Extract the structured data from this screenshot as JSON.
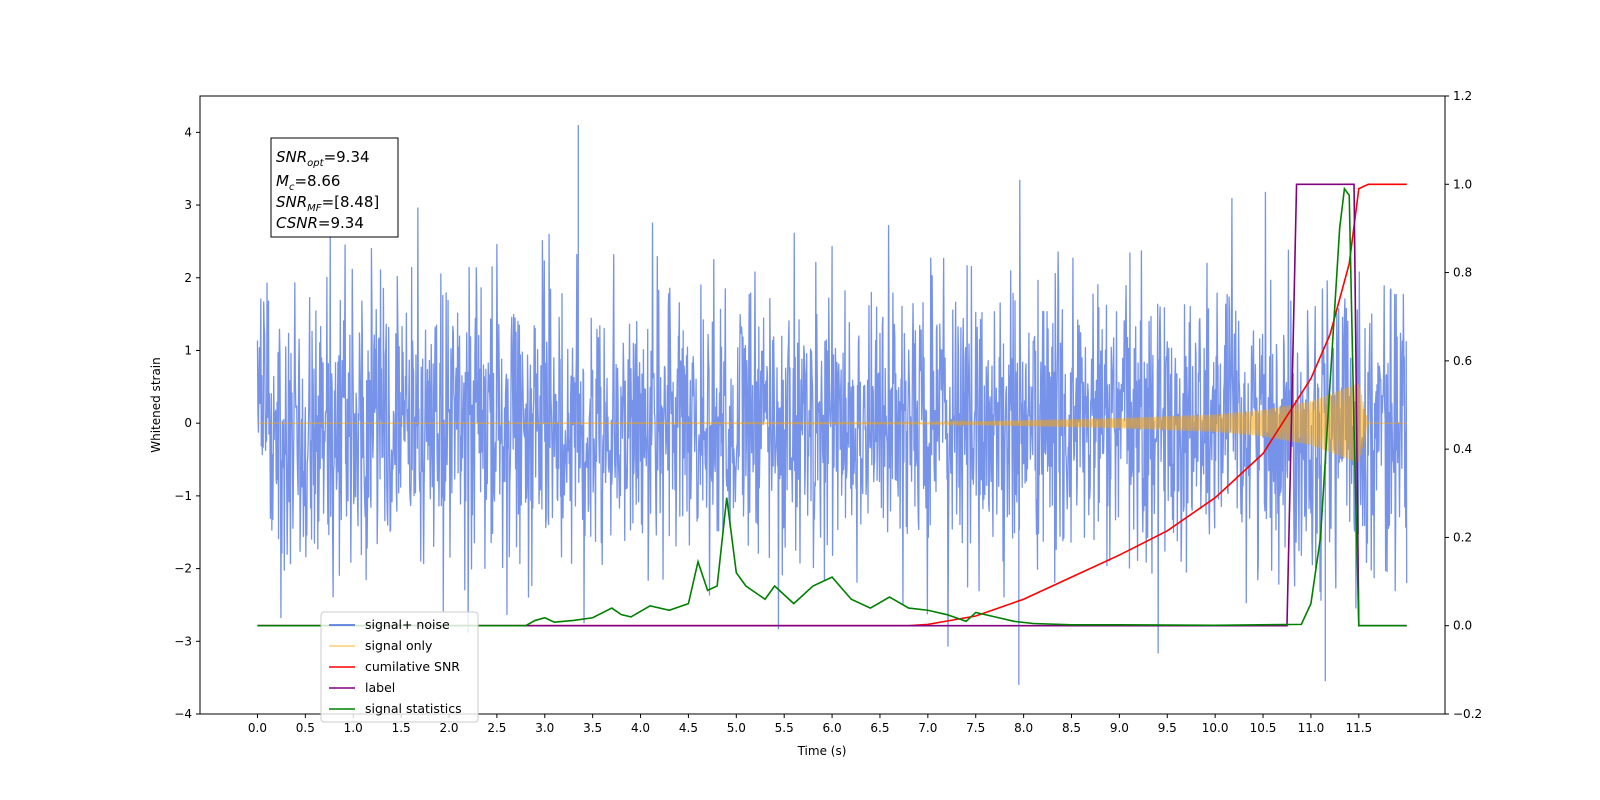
{
  "chart_data": {
    "type": "line",
    "xlabel": "Time (s)",
    "ylabel": "Whitened strain",
    "xlim": [
      -0.6,
      12.4
    ],
    "ylim": [
      -4,
      4.5
    ],
    "y2lim": [
      -0.2,
      1.2
    ],
    "x_ticks": [
      "0.0",
      "0.5",
      "1.0",
      "1.5",
      "2.0",
      "2.5",
      "3.0",
      "3.5",
      "4.0",
      "4.5",
      "5.0",
      "5.5",
      "6.0",
      "6.5",
      "7.0",
      "7.5",
      "8.0",
      "8.5",
      "9.0",
      "9.5",
      "10.0",
      "10.5",
      "11.0",
      "11.5"
    ],
    "y_ticks": [
      "4",
      "3",
      "2",
      "1",
      "0",
      "−1",
      "−2",
      "−3",
      "−4"
    ],
    "y2_ticks": [
      "1.2",
      "1.0",
      "0.8",
      "0.6",
      "0.4",
      "0.2",
      "0.0",
      "−0.2"
    ],
    "grid": false,
    "legend_position": "lower-left",
    "annotation": {
      "snr_opt": "=9.34",
      "mc": "=8.66",
      "snr_mf": "=[8.48]",
      "csnr": "=9.34"
    },
    "series": [
      {
        "name": "signal+ noise",
        "axis": "left",
        "color": "#4169e1",
        "x_range": [
          0.0,
          12.0
        ],
        "approx_range": [
          -3.6,
          4.1
        ],
        "peaks": [
          {
            "x": 3.35,
            "y": 4.1
          },
          {
            "x": 7.95,
            "y": -3.6
          },
          {
            "x": 11.15,
            "y": -3.55
          }
        ]
      },
      {
        "name": "signal only",
        "axis": "left",
        "color": "#ffa500",
        "x_range": [
          0.0,
          12.0
        ],
        "envelope": {
          "x": [
            0.0,
            7.0,
            8.0,
            9.0,
            10.0,
            10.5,
            11.0,
            11.3,
            11.5,
            11.6,
            12.0
          ],
          "amp": [
            0.0,
            0.01,
            0.04,
            0.07,
            0.12,
            0.18,
            0.3,
            0.45,
            0.55,
            0.0,
            0.0
          ]
        }
      },
      {
        "name": "cumilative SNR",
        "axis": "right",
        "color": "#ff0000",
        "x": [
          0.0,
          6.8,
          7.0,
          7.5,
          8.0,
          8.5,
          9.0,
          9.5,
          10.0,
          10.5,
          11.0,
          11.2,
          11.4,
          11.5,
          11.6,
          12.0
        ],
        "y": [
          0.0,
          0.0,
          0.003,
          0.022,
          0.06,
          0.11,
          0.16,
          0.215,
          0.29,
          0.39,
          0.56,
          0.66,
          0.82,
          0.99,
          1.0,
          1.0
        ]
      },
      {
        "name": "label",
        "axis": "right",
        "color": "#800080",
        "x": [
          0.0,
          10.75,
          10.85,
          11.45,
          11.5,
          12.0
        ],
        "y": [
          0.0,
          0.0,
          1.0,
          1.0,
          0.0,
          0.0
        ]
      },
      {
        "name": "signal statistics",
        "axis": "right",
        "color": "#008000",
        "x": [
          0.0,
          2.8,
          2.9,
          3.0,
          3.1,
          3.3,
          3.5,
          3.7,
          3.8,
          3.9,
          4.1,
          4.3,
          4.5,
          4.6,
          4.7,
          4.8,
          4.9,
          5.0,
          5.1,
          5.3,
          5.4,
          5.6,
          5.8,
          6.0,
          6.2,
          6.4,
          6.6,
          6.8,
          7.0,
          7.2,
          7.4,
          7.5,
          7.7,
          7.9,
          8.1,
          8.5,
          9.0,
          10.0,
          10.9,
          11.0,
          11.1,
          11.2,
          11.3,
          11.35,
          11.4,
          11.45,
          11.5,
          12.0
        ],
        "y": [
          0.0,
          0.0,
          0.012,
          0.018,
          0.008,
          0.012,
          0.018,
          0.04,
          0.025,
          0.02,
          0.045,
          0.035,
          0.05,
          0.145,
          0.08,
          0.09,
          0.29,
          0.12,
          0.09,
          0.06,
          0.09,
          0.05,
          0.09,
          0.11,
          0.06,
          0.04,
          0.065,
          0.04,
          0.035,
          0.025,
          0.01,
          0.03,
          0.02,
          0.01,
          0.005,
          0.002,
          0.002,
          0.001,
          0.003,
          0.05,
          0.2,
          0.55,
          0.9,
          0.99,
          0.975,
          0.45,
          0.0,
          0.0
        ]
      }
    ]
  },
  "legend": {
    "items": [
      {
        "label": "signal+ noise",
        "color": "#4169e1"
      },
      {
        "label": "signal only",
        "color": "#ffa500"
      },
      {
        "label": "cumilative SNR",
        "color": "#ff0000"
      },
      {
        "label": "label",
        "color": "#800080"
      },
      {
        "label": "signal statistics",
        "color": "#008000"
      }
    ]
  }
}
